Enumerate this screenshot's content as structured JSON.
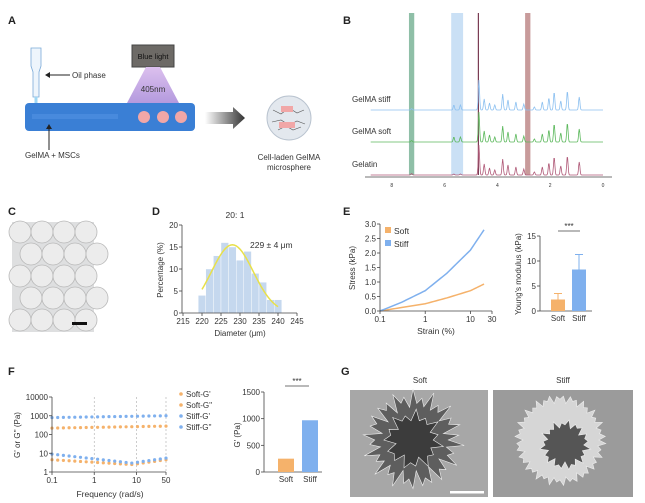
{
  "panels": {
    "A": {
      "label": "A",
      "blue_light": "Blue light",
      "wavelength": "405nm",
      "oil_phase": "Oil phase",
      "gelma_mscs": "GelMA + MSCs",
      "product_line1": "Cell-laden GelMA",
      "product_line2": "microsphere"
    },
    "B": {
      "label": "B"
    },
    "C": {
      "label": "C"
    },
    "D": {
      "label": "D"
    },
    "E": {
      "label": "E"
    },
    "F": {
      "label": "F"
    },
    "G": {
      "label": "G",
      "left_title": "Soft",
      "right_title": "Stiff"
    }
  },
  "colors": {
    "soft": "#f5b26b",
    "stiff": "#7fb0ee",
    "gelma_stiff": "#8cc0f0",
    "gelma_soft": "#5cb85c",
    "gelatin": "#b05a78",
    "tube": "#3a7fd5",
    "fit": "#e8e04a",
    "hist": "#c5d8ee"
  },
  "chart_data": [
    {
      "id": "B",
      "type": "line",
      "xlabel": "",
      "ylabel": "",
      "xticks": [
        "8",
        "6",
        "4",
        "2",
        "0"
      ],
      "xlim": [
        8.8,
        0
      ],
      "series": [
        {
          "name": "GelMA stiff",
          "color": "#8cc0f0"
        },
        {
          "name": "GelMA soft",
          "color": "#5cb85c"
        },
        {
          "name": "Gelatin",
          "color": "#b05a78"
        }
      ],
      "peaks_ppm": [
        [
          7.25,
          0.15
        ],
        [
          5.65,
          0.5
        ],
        [
          5.4,
          0.5
        ],
        [
          4.7,
          3
        ],
        [
          4.5,
          1.1
        ],
        [
          4.3,
          0.7
        ],
        [
          4.1,
          0.5
        ],
        [
          3.8,
          1.6
        ],
        [
          3.6,
          1
        ],
        [
          3.3,
          0.8
        ],
        [
          3.0,
          0.6
        ],
        [
          2.6,
          0.3
        ],
        [
          2.3,
          0.8
        ],
        [
          2.05,
          1.2
        ],
        [
          1.85,
          1.8
        ],
        [
          1.6,
          0.9
        ],
        [
          1.35,
          1.9
        ],
        [
          0.9,
          1.3
        ]
      ],
      "highlight_bands_ppm": [
        [
          7.35,
          7.15,
          "#6aaa8a"
        ],
        [
          5.75,
          5.3,
          "#b8d6f2"
        ],
        [
          2.95,
          2.75,
          "#b57a7a"
        ]
      ]
    },
    {
      "id": "D",
      "type": "bar",
      "title": "20: 1",
      "annotation": "229 ± 4 μm",
      "xlabel": "Diameter (μm)",
      "ylabel": "Percentage (%)",
      "xlim": [
        215,
        245
      ],
      "ylim": [
        0,
        20
      ],
      "xticks": [
        "215",
        "220",
        "225",
        "230",
        "235",
        "240",
        "245"
      ],
      "yticks": [
        "0",
        "5",
        "10",
        "15",
        "20"
      ],
      "bins": [
        220,
        222,
        224,
        226,
        228,
        230,
        232,
        234,
        236,
        238,
        240
      ],
      "values": [
        4,
        10,
        13,
        16,
        15,
        12,
        14,
        9,
        7,
        3,
        3
      ],
      "fit": {
        "mean": 228,
        "peak": 15.5,
        "sd": 5.5
      }
    },
    {
      "id": "E-left",
      "type": "line",
      "xscale": "log",
      "xlabel": "Strain (%)",
      "ylabel": "Stress (kPa)",
      "xlim": [
        0.1,
        30
      ],
      "ylim": [
        0,
        3.0
      ],
      "xticks": [
        "0.1",
        "1",
        "10",
        "30"
      ],
      "yticks": [
        "0.0",
        "0.5",
        "1.0",
        "1.5",
        "2.0",
        "2.5",
        "3.0"
      ],
      "series": [
        {
          "name": "Soft",
          "x": [
            0.1,
            0.3,
            1,
            3,
            10,
            20
          ],
          "y": [
            0,
            0.12,
            0.25,
            0.45,
            0.7,
            0.93
          ]
        },
        {
          "name": "Stiff",
          "x": [
            0.1,
            0.3,
            1,
            3,
            10,
            20
          ],
          "y": [
            0,
            0.3,
            0.7,
            1.3,
            2.1,
            2.8
          ]
        }
      ]
    },
    {
      "id": "E-right",
      "type": "bar",
      "ylabel": "Young's modulus (kPa)",
      "significance": "***",
      "ylim": [
        0,
        15
      ],
      "yticks": [
        "0",
        "5",
        "10",
        "15"
      ],
      "categories": [
        "Soft",
        "Stiff"
      ],
      "values": [
        2.3,
        8.3
      ],
      "errors": [
        1.2,
        3.0
      ]
    },
    {
      "id": "F-left",
      "type": "scatter",
      "xscale": "log",
      "yscale": "log",
      "xlabel": "Frequency (rad/s)",
      "ylabel": "G' or G'' (Pa)",
      "xlim": [
        0.1,
        50
      ],
      "ylim": [
        1,
        10000
      ],
      "xticks": [
        "0.1",
        "1",
        "10",
        "50"
      ],
      "yticks": [
        "1",
        "10",
        "100",
        "1000",
        "10000"
      ],
      "grid": "vertical dashed at 1, 10, 50",
      "series": [
        {
          "name": "Soft-G'",
          "start": 220,
          "end": 280
        },
        {
          "name": "Soft-G''",
          "start": 4.5,
          "mid": 2.5,
          "end": 4.5
        },
        {
          "name": "Stiff-G'",
          "start": 800,
          "end": 1000
        },
        {
          "name": "Stiff-G''",
          "start": 9,
          "mid": 3,
          "end": 5.5
        }
      ]
    },
    {
      "id": "F-right",
      "type": "bar",
      "ylabel": "G' (Pa)",
      "significance": "***",
      "ylim": [
        0,
        1500
      ],
      "yticks": [
        "0",
        "500",
        "1000",
        "1500"
      ],
      "categories": [
        "Soft",
        "Stiff"
      ],
      "values": [
        250,
        970
      ]
    }
  ]
}
